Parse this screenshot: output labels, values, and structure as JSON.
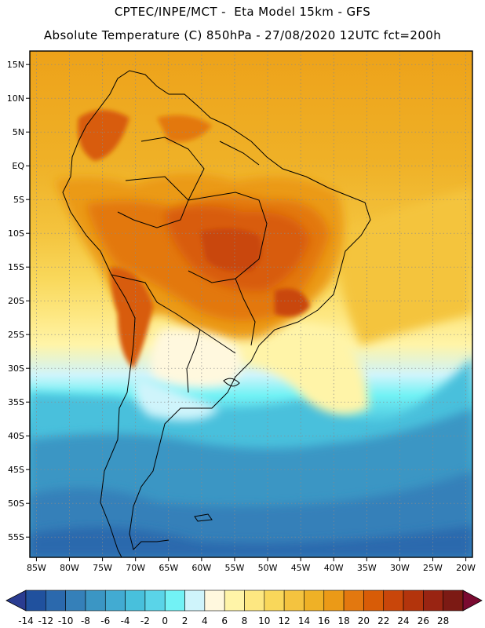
{
  "title_line1": "CPTEC/INPE/MCT -  Eta Model 15km - GFS",
  "title_line2": "Absolute Temperature (C) 850hPa - 27/08/2020 12UTC fct=200h",
  "map": {
    "lon_range": [
      -86,
      -19
    ],
    "lat_range": [
      -58,
      17
    ],
    "lon_ticks": [
      {
        "value": -85,
        "label": "85W"
      },
      {
        "value": -80,
        "label": "80W"
      },
      {
        "value": -75,
        "label": "75W"
      },
      {
        "value": -70,
        "label": "70W"
      },
      {
        "value": -65,
        "label": "65W"
      },
      {
        "value": -60,
        "label": "60W"
      },
      {
        "value": -55,
        "label": "55W"
      },
      {
        "value": -50,
        "label": "50W"
      },
      {
        "value": -45,
        "label": "45W"
      },
      {
        "value": -40,
        "label": "40W"
      },
      {
        "value": -35,
        "label": "35W"
      },
      {
        "value": -30,
        "label": "30W"
      },
      {
        "value": -25,
        "label": "25W"
      },
      {
        "value": -20,
        "label": "20W"
      }
    ],
    "lat_ticks": [
      {
        "value": 15,
        "label": "15N"
      },
      {
        "value": 10,
        "label": "10N"
      },
      {
        "value": 5,
        "label": "5N"
      },
      {
        "value": 0,
        "label": "EQ"
      },
      {
        "value": -5,
        "label": "5S"
      },
      {
        "value": -10,
        "label": "10S"
      },
      {
        "value": -15,
        "label": "15S"
      },
      {
        "value": -20,
        "label": "20S"
      },
      {
        "value": -25,
        "label": "25S"
      },
      {
        "value": -30,
        "label": "30S"
      },
      {
        "value": -35,
        "label": "35S"
      },
      {
        "value": -40,
        "label": "40S"
      },
      {
        "value": -45,
        "label": "45S"
      },
      {
        "value": -50,
        "label": "50S"
      },
      {
        "value": -55,
        "label": "55S"
      }
    ]
  },
  "colorbar": {
    "labels": [
      "-14",
      "-12",
      "-10",
      "-8",
      "-6",
      "-4",
      "-2",
      "0",
      "2",
      "4",
      "6",
      "8",
      "10",
      "12",
      "14",
      "16",
      "18",
      "20",
      "22",
      "24",
      "26",
      "28"
    ],
    "colors": [
      "#2a3c91",
      "#20519e",
      "#2b69ad",
      "#3580b9",
      "#3b96c4",
      "#42abd2",
      "#48c0dc",
      "#5ad4e8",
      "#72f2f5",
      "#cff4fb",
      "#fff8de",
      "#fff4a8",
      "#fde781",
      "#f9d75a",
      "#f4c33f",
      "#efb126",
      "#eb9a17",
      "#e3780f",
      "#d85c07",
      "#c9460a",
      "#b3340c",
      "#992412",
      "#7c1a14",
      "#7a0a30"
    ]
  }
}
